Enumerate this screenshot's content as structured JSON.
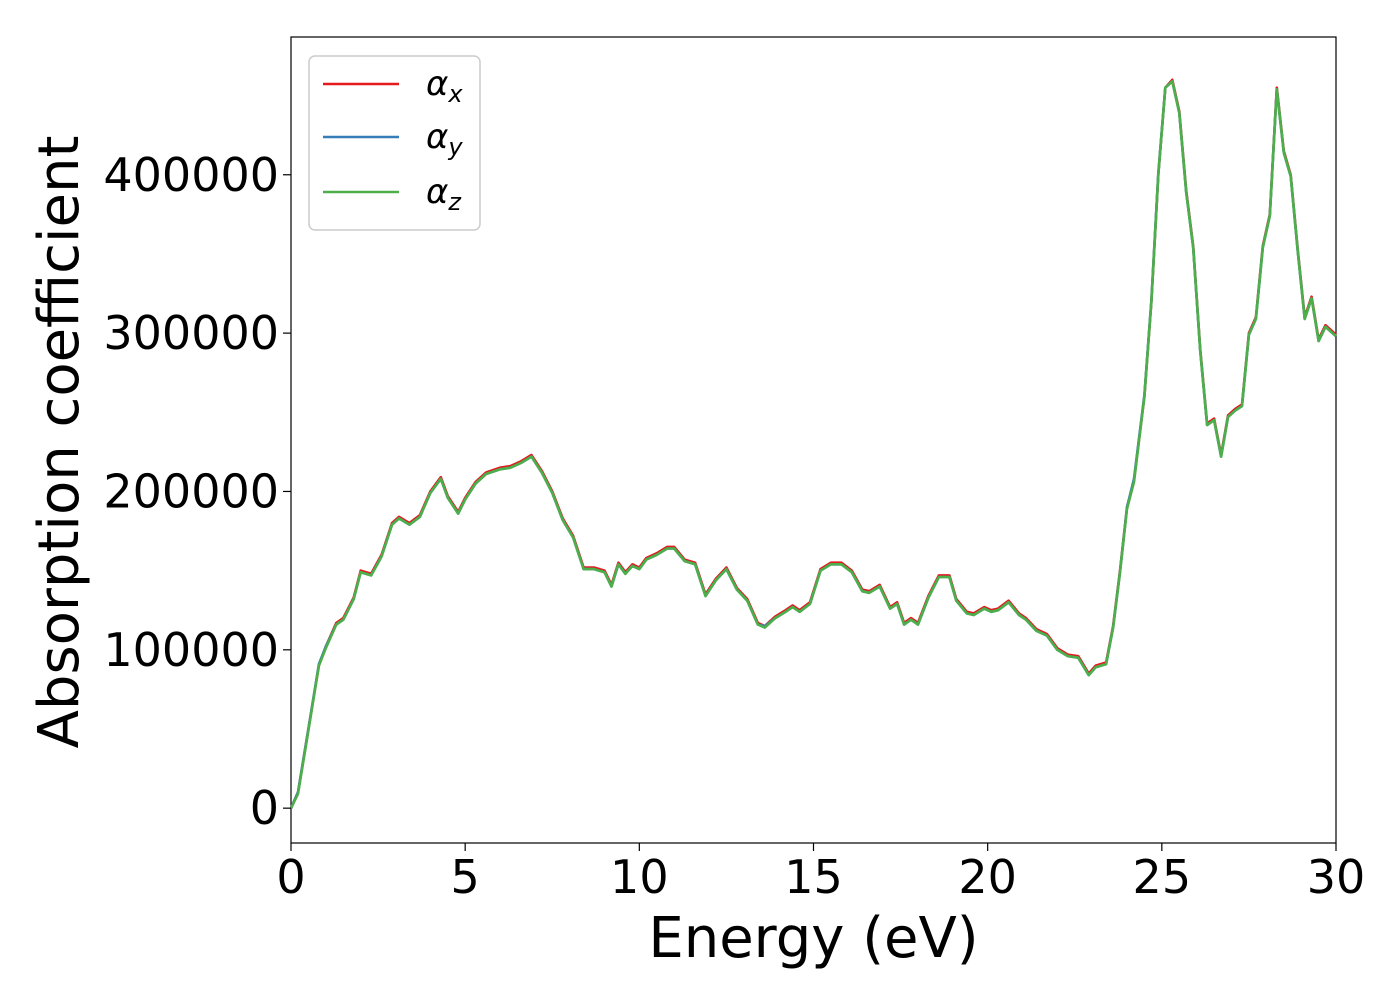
{
  "chart_data": {
    "type": "line",
    "xlabel": "Energy (eV)",
    "ylabel": "Absorption coefficient",
    "xlim": [
      0,
      30
    ],
    "ylim": [
      -22000,
      487000
    ],
    "xticks": [
      0,
      5,
      10,
      15,
      20,
      25,
      30
    ],
    "yticks": [
      0,
      100000,
      200000,
      300000,
      400000
    ],
    "grid": false,
    "legend_position": "top-left",
    "x": [
      0,
      0.2,
      0.5,
      0.8,
      1.0,
      1.3,
      1.5,
      1.8,
      2.0,
      2.3,
      2.6,
      2.9,
      3.1,
      3.4,
      3.7,
      4.0,
      4.3,
      4.5,
      4.8,
      5.0,
      5.3,
      5.6,
      6.0,
      6.3,
      6.6,
      6.9,
      7.2,
      7.5,
      7.8,
      8.1,
      8.4,
      8.7,
      9.0,
      9.2,
      9.4,
      9.6,
      9.8,
      10.0,
      10.2,
      10.5,
      10.8,
      11.0,
      11.3,
      11.6,
      11.9,
      12.2,
      12.5,
      12.8,
      13.1,
      13.4,
      13.6,
      13.9,
      14.2,
      14.4,
      14.6,
      14.9,
      15.2,
      15.5,
      15.8,
      16.1,
      16.4,
      16.6,
      16.9,
      17.2,
      17.4,
      17.6,
      17.8,
      18.0,
      18.3,
      18.6,
      18.9,
      19.1,
      19.4,
      19.6,
      19.9,
      20.1,
      20.3,
      20.6,
      20.9,
      21.1,
      21.4,
      21.7,
      22.0,
      22.3,
      22.6,
      22.9,
      23.1,
      23.4,
      23.6,
      23.8,
      24.0,
      24.2,
      24.5,
      24.7,
      24.9,
      25.1,
      25.3,
      25.5,
      25.7,
      25.9,
      26.1,
      26.3,
      26.5,
      26.7,
      26.9,
      27.1,
      27.3,
      27.5,
      27.7,
      27.9,
      28.1,
      28.3,
      28.5,
      28.7,
      28.9,
      29.1,
      29.3,
      29.5,
      29.7,
      30.0
    ],
    "series": [
      {
        "name": "α_x",
        "color": "#e41a1c",
        "values": [
          0,
          10000,
          50000,
          90000,
          102000,
          117000,
          120000,
          133000,
          150000,
          148000,
          160000,
          180000,
          184000,
          180000,
          185000,
          200000,
          209000,
          197000,
          187000,
          196000,
          206000,
          212000,
          215000,
          216000,
          219000,
          223000,
          213000,
          200000,
          183000,
          172000,
          152000,
          152000,
          150000,
          141000,
          155000,
          149000,
          154000,
          152000,
          158000,
          161000,
          165000,
          165000,
          157000,
          155000,
          135000,
          145000,
          152000,
          139000,
          132000,
          117000,
          115000,
          121000,
          125000,
          128000,
          125000,
          130000,
          151000,
          155000,
          155000,
          150000,
          138000,
          137000,
          141000,
          127000,
          130000,
          117000,
          120000,
          117000,
          134000,
          147000,
          147000,
          132000,
          124000,
          123000,
          127000,
          125000,
          126000,
          131000,
          123000,
          120000,
          113000,
          110000,
          101000,
          97000,
          96000,
          85000,
          90000,
          92000,
          115000,
          150000,
          190000,
          207000,
          260000,
          320000,
          400000,
          455000,
          460000,
          440000,
          390000,
          355000,
          290000,
          243000,
          246000,
          223000,
          248000,
          252000,
          255000,
          300000,
          310000,
          355000,
          375000,
          455000,
          415000,
          400000,
          353000,
          310000,
          323000,
          296000,
          305000,
          299000
        ]
      },
      {
        "name": "α_y",
        "color": "#377eb8",
        "values": [
          0,
          10000,
          50000,
          91000,
          102000,
          116000,
          119000,
          132000,
          149000,
          147000,
          159000,
          179000,
          183000,
          179000,
          184000,
          199000,
          208000,
          196000,
          186000,
          195000,
          205000,
          211000,
          214000,
          215000,
          218000,
          222000,
          212000,
          199000,
          182000,
          171000,
          151000,
          151000,
          149000,
          140000,
          154000,
          148000,
          153000,
          151000,
          157000,
          160000,
          164000,
          164000,
          156000,
          154000,
          134000,
          144000,
          151000,
          138000,
          131000,
          116000,
          115000,
          120000,
          124000,
          127000,
          124000,
          129000,
          150000,
          154000,
          154000,
          149000,
          137000,
          136000,
          140000,
          126000,
          129000,
          116000,
          119000,
          116000,
          133000,
          146000,
          146000,
          131000,
          123000,
          122000,
          126000,
          124000,
          125000,
          130000,
          122000,
          119000,
          112000,
          109000,
          100000,
          96000,
          95000,
          84000,
          89000,
          91000,
          114000,
          149000,
          190000,
          208000,
          261000,
          321000,
          401000,
          455000,
          459000,
          439000,
          389000,
          354000,
          289000,
          242000,
          245000,
          222000,
          247000,
          251000,
          254000,
          299000,
          309000,
          354000,
          374000,
          454000,
          414000,
          399000,
          352000,
          309000,
          322000,
          295000,
          304000,
          298000
        ]
      },
      {
        "name": "α_z",
        "color": "#4daf4a",
        "values": [
          0,
          9000,
          49000,
          90000,
          101000,
          116000,
          119000,
          132000,
          149000,
          147000,
          159000,
          179000,
          183000,
          179000,
          184000,
          199000,
          208000,
          196000,
          186000,
          195000,
          205000,
          211000,
          214000,
          215000,
          218000,
          222000,
          212000,
          199000,
          182000,
          171000,
          151000,
          151000,
          149000,
          140000,
          154000,
          148000,
          153000,
          151000,
          157000,
          160000,
          164000,
          164000,
          156000,
          154000,
          134000,
          144000,
          151000,
          138000,
          131000,
          116000,
          114000,
          120000,
          124000,
          127000,
          124000,
          129000,
          150000,
          154000,
          154000,
          149000,
          137000,
          136000,
          140000,
          126000,
          129000,
          116000,
          119000,
          116000,
          133000,
          146000,
          146000,
          131000,
          123000,
          122000,
          126000,
          124000,
          125000,
          130000,
          122000,
          119000,
          112000,
          109000,
          100000,
          96000,
          95000,
          84000,
          89000,
          91000,
          114000,
          149000,
          189000,
          206000,
          260000,
          320000,
          400000,
          455000,
          459000,
          439000,
          389000,
          354000,
          289000,
          242000,
          245000,
          222000,
          247000,
          251000,
          254000,
          299000,
          309000,
          354000,
          374000,
          454000,
          414000,
          399000,
          352000,
          309000,
          322000,
          295000,
          304000,
          298000
        ]
      }
    ],
    "legend": [
      {
        "base": "α",
        "sub": "x"
      },
      {
        "base": "α",
        "sub": "y"
      },
      {
        "base": "α",
        "sub": "z"
      }
    ]
  }
}
